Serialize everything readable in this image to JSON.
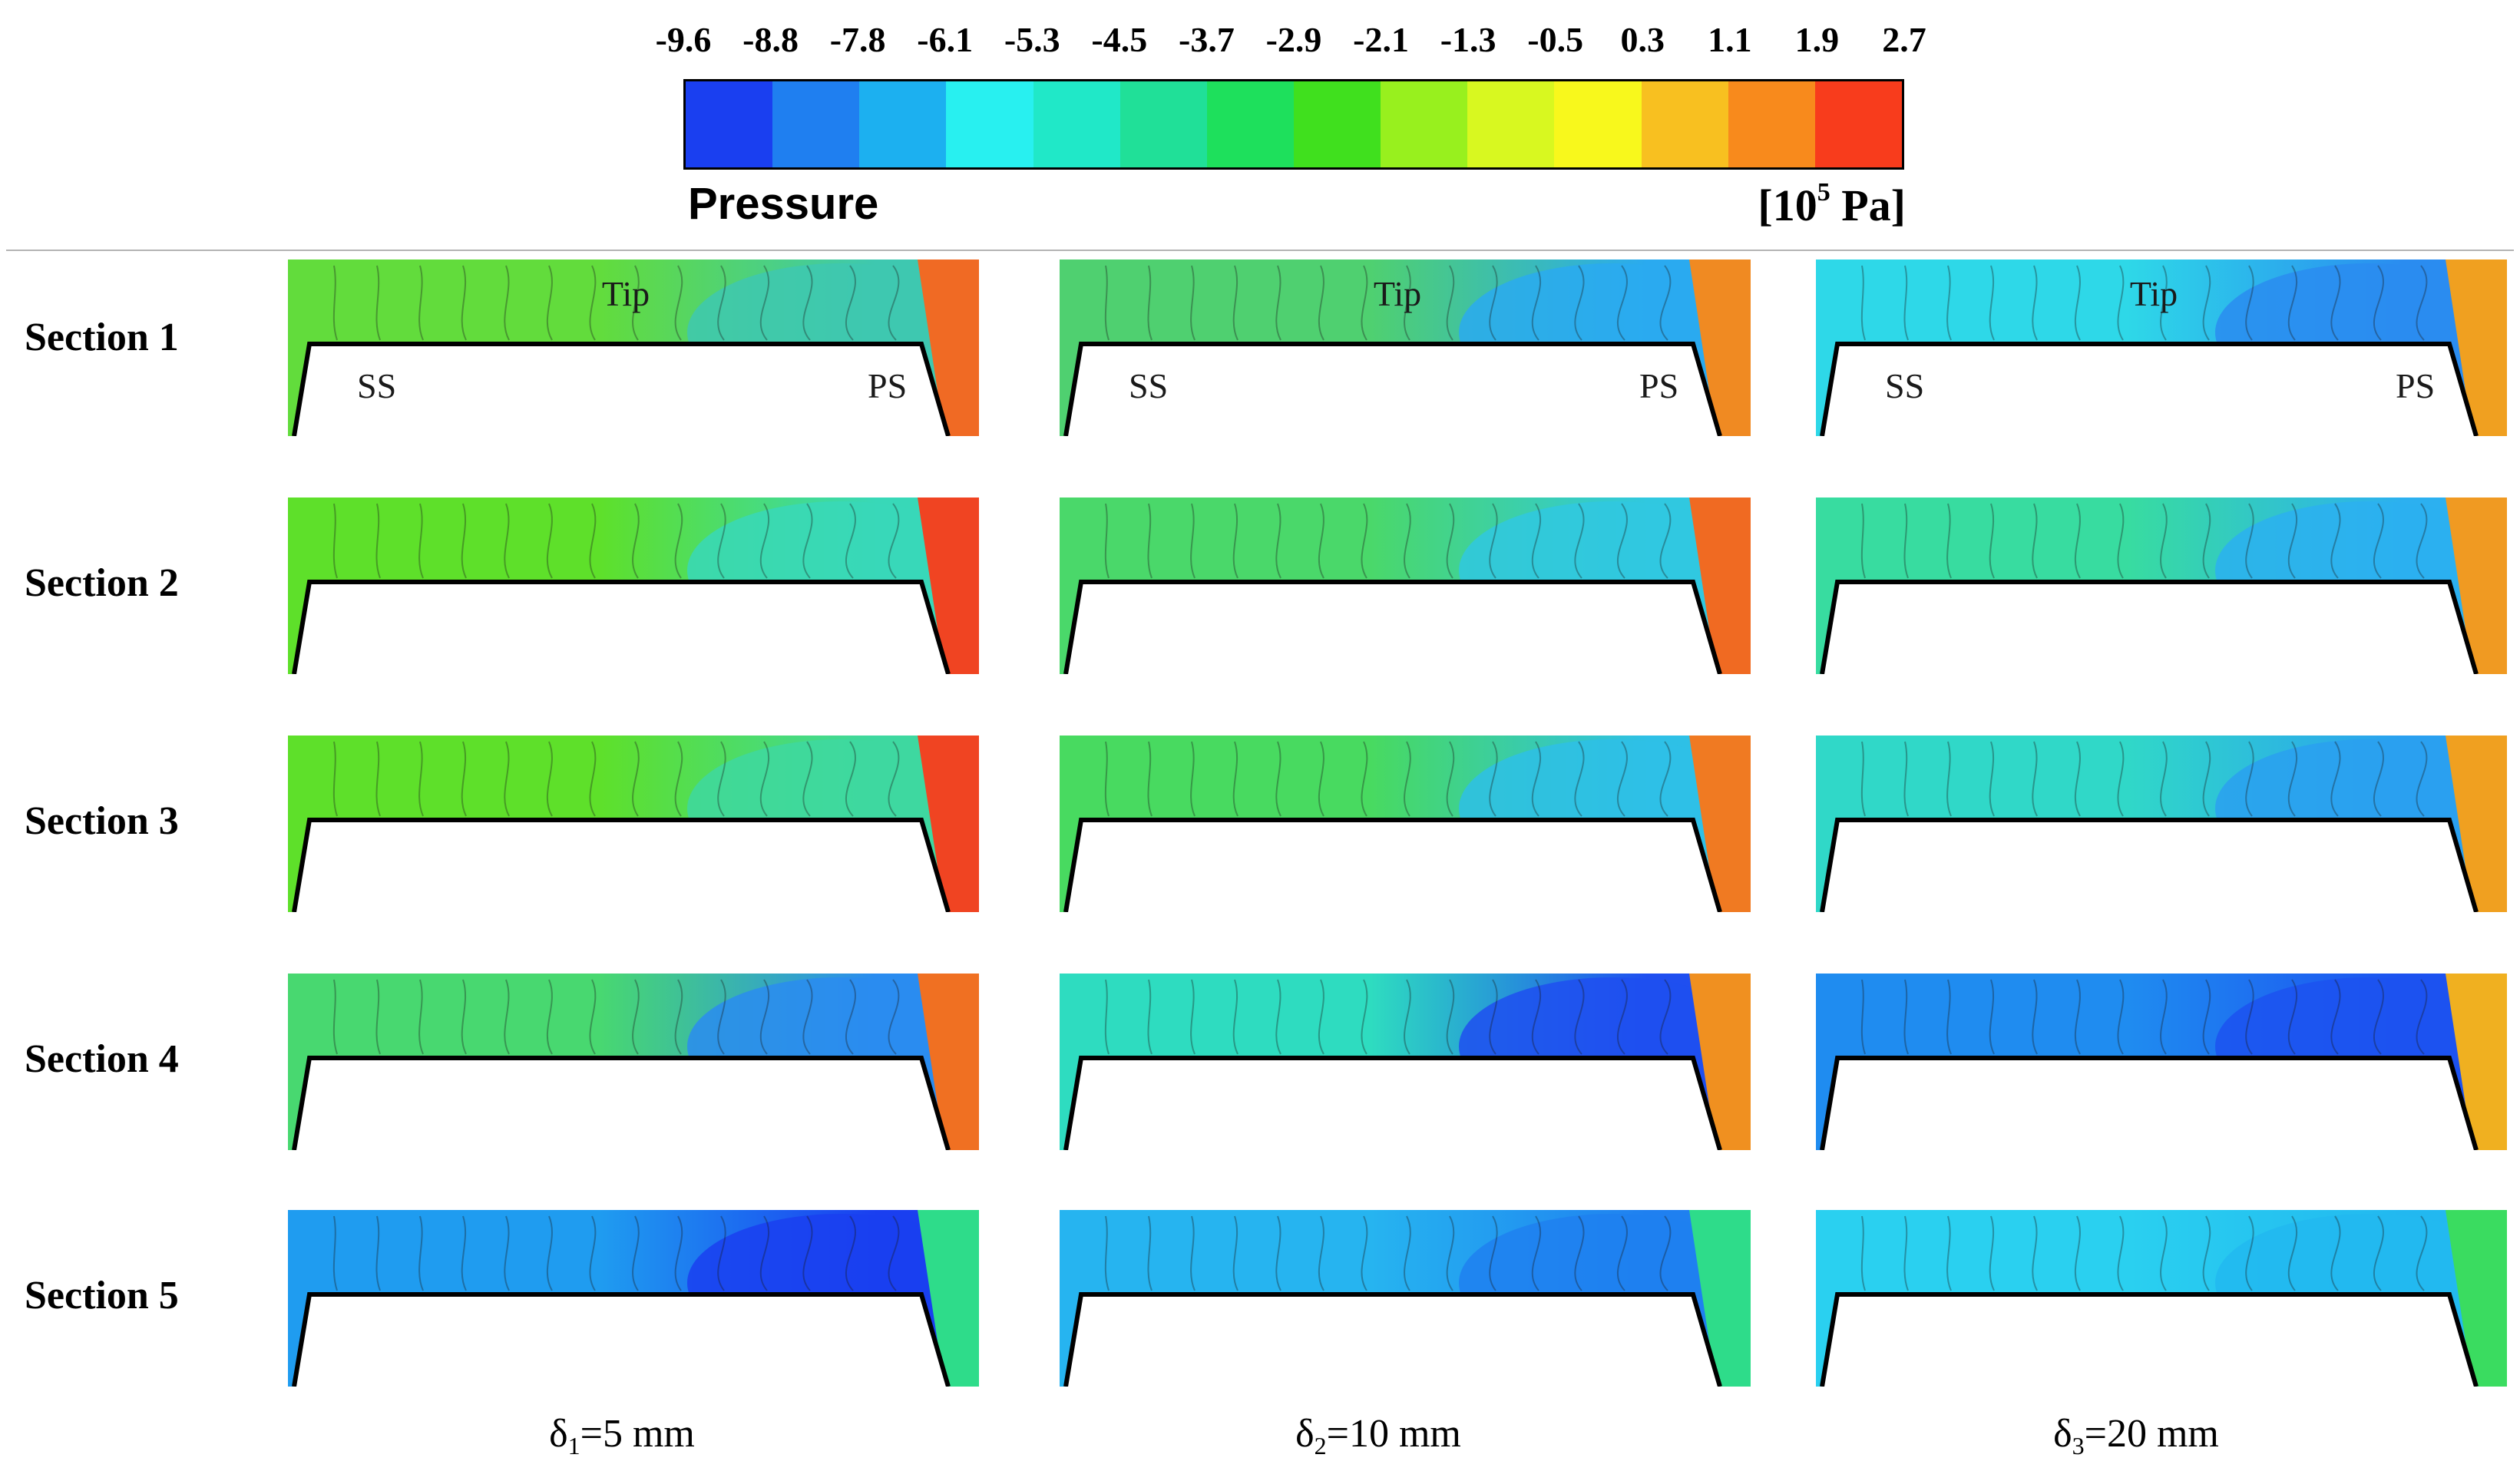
{
  "colorbar": {
    "title": "Pressure",
    "unit_prefix": "[10",
    "unit_exponent": "5",
    "unit_suffix": " Pa]",
    "tick_labels": [
      "-9.6",
      "-8.8",
      "-7.8",
      "-6.1",
      "-5.3",
      "-4.5",
      "-3.7",
      "-2.9",
      "-2.1",
      "-1.3",
      "-0.5",
      "0.3",
      "1.1",
      "1.9",
      "2.7"
    ],
    "colors": [
      "#1a3ff0",
      "#1f7ff0",
      "#1cb0f0",
      "#28f0f0",
      "#20e8c8",
      "#20e098",
      "#1ee05c",
      "#40e01e",
      "#98f01e",
      "#d8f820",
      "#f8f81c",
      "#f8c020",
      "#f88a1c",
      "#f83c1c"
    ]
  },
  "rows": [
    {
      "label": "Section 1"
    },
    {
      "label": "Section 2"
    },
    {
      "label": "Section 3"
    },
    {
      "label": "Section 4"
    },
    {
      "label": "Section 5"
    }
  ],
  "columns": [
    {
      "caption_symbol": "δ",
      "caption_sub": "1",
      "caption_rest": "=5 mm"
    },
    {
      "caption_symbol": "δ",
      "caption_sub": "2",
      "caption_rest": "=10 mm"
    },
    {
      "caption_symbol": "δ",
      "caption_sub": "3",
      "caption_rest": "=20 mm"
    }
  ],
  "panel_labels": {
    "tip": "Tip",
    "suction_side": "SS",
    "pressure_side": "PS"
  },
  "panels": [
    [
      {
        "gap": "#62dc3c",
        "core": "#3ec8b0",
        "side": "#f06a24"
      },
      {
        "gap": "#4fd070",
        "core": "#2aaaf0",
        "side": "#f08a22"
      },
      {
        "gap": "#2ed8e8",
        "core": "#2a8cf0",
        "side": "#f0a020"
      }
    ],
    [
      {
        "gap": "#5ee02a",
        "core": "#38d8b8",
        "side": "#f04422"
      },
      {
        "gap": "#4ad86a",
        "core": "#30c8e0",
        "side": "#f06a22"
      },
      {
        "gap": "#38dca0",
        "core": "#2cb0f0",
        "side": "#f09a22"
      }
    ],
    [
      {
        "gap": "#5ee02a",
        "core": "#3ed8a0",
        "side": "#f04422"
      },
      {
        "gap": "#48da60",
        "core": "#2ec0e6",
        "side": "#f07a22"
      },
      {
        "gap": "#30d8c8",
        "core": "#2aa0f0",
        "side": "#f0a020"
      }
    ],
    [
      {
        "gap": "#48d870",
        "core": "#2a8cf0",
        "side": "#f07022"
      },
      {
        "gap": "#2edcc0",
        "core": "#1f4ff0",
        "side": "#f09020"
      },
      {
        "gap": "#1f8cf0",
        "core": "#1c52f0",
        "side": "#f0b020"
      }
    ],
    [
      {
        "gap": "#1f9cf0",
        "core": "#1a3ff0",
        "side": "#2edc8a"
      },
      {
        "gap": "#26b4f0",
        "core": "#1f80f0",
        "side": "#2edc8a"
      },
      {
        "gap": "#2ad0f0",
        "core": "#22b8f0",
        "side": "#3adc60"
      }
    ]
  ]
}
